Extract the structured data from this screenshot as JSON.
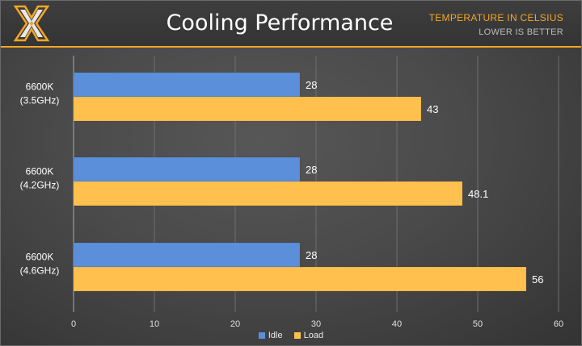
{
  "header": {
    "title": "Cooling Performance",
    "subtitle_line1": "TEMPERATURE IN CELSIUS",
    "subtitle_line2": "LOWER IS BETTER",
    "logo_icon": "tweaktown-x-logo-icon"
  },
  "colors": {
    "idle": "#5b8fd9",
    "load": "#ffc04d",
    "accent": "#f5a623",
    "background": "#4a4a4a"
  },
  "chart_data": {
    "type": "bar",
    "orientation": "horizontal",
    "title": "Cooling Performance",
    "categories": [
      [
        "6600K",
        "(3.5GHz)"
      ],
      [
        "6600K",
        "(4.2GHz)"
      ],
      [
        "6600K",
        "(4.6GHz)"
      ]
    ],
    "series": [
      {
        "name": "Idle",
        "values": [
          28,
          28,
          28
        ]
      },
      {
        "name": "Load",
        "values": [
          43,
          48.1,
          56
        ]
      }
    ],
    "xlim": [
      0,
      60
    ],
    "xticks": [
      0,
      10,
      20,
      30,
      40,
      50,
      60
    ],
    "grid": true,
    "legend": "bottom-center"
  }
}
